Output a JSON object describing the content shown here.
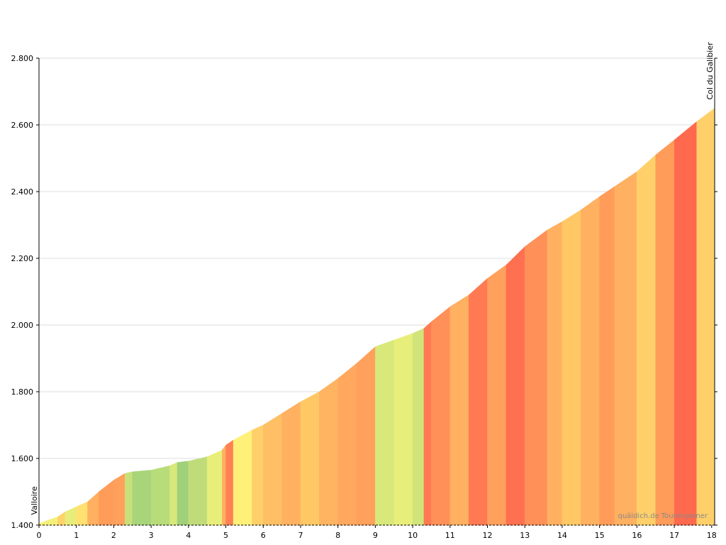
{
  "chart_data": {
    "type": "area",
    "series": [
      {
        "x": [
          0,
          0.5,
          0.7,
          1.0,
          1.3,
          1.6,
          2.0,
          2.3,
          2.5,
          3.0,
          3.5,
          3.7,
          4.0,
          4.5,
          4.9,
          5.0,
          5.2,
          5.7,
          6.0,
          6.5,
          7.0,
          7.5,
          8.0,
          8.5,
          9.0,
          9.5,
          10.0,
          10.3,
          10.5,
          11.0,
          11.5,
          12.0,
          12.5,
          13.0,
          13.6,
          14.0,
          14.5,
          15.0,
          15.4,
          16.0,
          16.5,
          17.0,
          17.6,
          18.08
        ],
        "values": [
          1405,
          1425,
          1440,
          1455,
          1470,
          1500,
          1535,
          1555,
          1560,
          1565,
          1578,
          1588,
          1592,
          1605,
          1625,
          1640,
          1655,
          1685,
          1700,
          1735,
          1770,
          1800,
          1840,
          1885,
          1935,
          1955,
          1975,
          1990,
          2010,
          2055,
          2090,
          2140,
          2180,
          2235,
          2285,
          2310,
          2345,
          2385,
          2415,
          2460,
          2510,
          2555,
          2610,
          2650
        ],
        "segment_colors": [
          "#f5f07a",
          "#ffd36b",
          "#e8ec7a",
          "#ffe070",
          "#ffb060",
          "#ff9c5a",
          "#ffa05c",
          "#c8e07a",
          "#a8d47a",
          "#b8dc7a",
          "#d8e87a",
          "#a0d07a",
          "#c0dc7a",
          "#e8ee7a",
          "#ffb060",
          "#ff8055",
          "#fff07a",
          "#ffd06a",
          "#ffc065",
          "#ffb060",
          "#ffc865",
          "#ffb462",
          "#ffa85e",
          "#ffa05c",
          "#d8e87a",
          "#e8ee7a",
          "#d0e47a",
          "#ff7a52",
          "#ff9058",
          "#ffb060",
          "#ff7a52",
          "#ffa05c",
          "#ff7050",
          "#ff9058",
          "#ffb060",
          "#ffc865",
          "#ffb060",
          "#ff9c5a",
          "#ffb060",
          "#ffd06a",
          "#ff9c5a",
          "#ff6a4e",
          "#ffd06a"
        ]
      }
    ],
    "xlim": [
      0,
      18.08
    ],
    "xticks": [
      0,
      1,
      2,
      3,
      4,
      5,
      6,
      7,
      8,
      9,
      10,
      11,
      12,
      13,
      14,
      15,
      16,
      17,
      18
    ],
    "ylim": [
      1400,
      2800
    ],
    "yticks": [
      {
        "value": 1400,
        "label": "1.400"
      },
      {
        "value": 1600,
        "label": "1.600"
      },
      {
        "value": 1800,
        "label": "1.800"
      },
      {
        "value": 2000,
        "label": "2.000"
      },
      {
        "value": 2200,
        "label": "2.200"
      },
      {
        "value": 2400,
        "label": "2.400"
      },
      {
        "value": 2600,
        "label": "2.600"
      },
      {
        "value": 2800,
        "label": "2.800"
      }
    ],
    "grid": true,
    "annotations": [
      {
        "text": "Valloire",
        "x": 0
      },
      {
        "text": "Col du Galibier",
        "x": 18.08
      }
    ],
    "watermark": "quäldich.de Tourenplaner"
  }
}
